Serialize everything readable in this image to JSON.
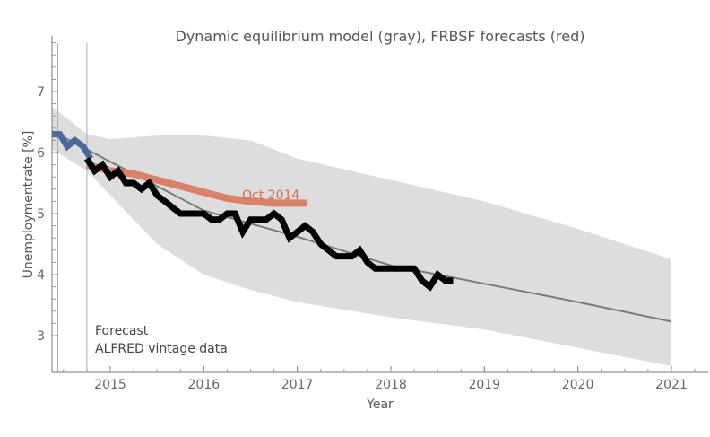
{
  "chart_data": {
    "type": "line",
    "title": "Dynamic equilibrium model (gray), FRBSF forecasts (red)",
    "xlabel": "Year",
    "ylabel": "Unemploymentrate [%]",
    "xlim": [
      2014.38,
      2021.4
    ],
    "ylim": [
      2.4,
      7.9
    ],
    "xticks": [
      "2015",
      "2016",
      "2017",
      "2018",
      "2019",
      "2020",
      "2021"
    ],
    "yticks": [
      "3",
      "4",
      "5",
      "6",
      "7"
    ],
    "grid": false,
    "annotations": {
      "forecast": "Forecast",
      "vintage": "ALFRED vintage data",
      "red_label": "Oct 2014"
    },
    "colors": {
      "band": "#dddddd",
      "model": "#7a7a7a",
      "data": "#000000",
      "history": "#4a6a9a",
      "forecast": "#d9826a",
      "text": "#555555"
    },
    "model_band": {
      "x": [
        2014.38,
        2014.75,
        2015,
        2015.5,
        2016,
        2016.5,
        2017,
        2018,
        2019,
        2020,
        2021
      ],
      "upper": [
        6.75,
        6.3,
        6.22,
        6.28,
        6.28,
        6.2,
        5.9,
        5.55,
        5.2,
        4.75,
        4.25
      ],
      "lower": [
        6.05,
        5.7,
        5.3,
        4.5,
        4.0,
        3.75,
        3.55,
        3.3,
        3.1,
        2.8,
        2.5
      ]
    },
    "model_line": {
      "x": [
        2014.38,
        2015,
        2016,
        2017,
        2018,
        2019,
        2020,
        2021
      ],
      "y": [
        6.35,
        5.85,
        5.05,
        4.62,
        4.15,
        3.85,
        3.55,
        3.23
      ]
    },
    "history": {
      "x": [
        2014.38,
        2014.46,
        2014.54,
        2014.62,
        2014.71,
        2014.79
      ],
      "y": [
        6.3,
        6.3,
        6.1,
        6.2,
        6.1,
        5.9
      ]
    },
    "data_start": 2014.75,
    "data_monthly": [
      5.9,
      5.7,
      5.8,
      5.6,
      5.7,
      5.5,
      5.5,
      5.4,
      5.5,
      5.3,
      5.2,
      5.1,
      5.0,
      5.0,
      5.0,
      5.0,
      4.9,
      4.9,
      5.0,
      5.0,
      4.7,
      4.9,
      4.9,
      4.9,
      5.0,
      4.9,
      4.6,
      4.7,
      4.8,
      4.7,
      4.5,
      4.4,
      4.3,
      4.3,
      4.3,
      4.4,
      4.2,
      4.1,
      4.1,
      4.1,
      4.1,
      4.1,
      4.1,
      3.9,
      3.8,
      4.0,
      3.9,
      3.9
    ],
    "forecast": {
      "name": "Oct 2014",
      "x": [
        2014.75,
        2015.0,
        2015.25,
        2015.5,
        2015.75,
        2016.0,
        2016.25,
        2016.5,
        2016.75,
        2017.1
      ],
      "y": [
        5.8,
        5.7,
        5.65,
        5.55,
        5.45,
        5.35,
        5.25,
        5.2,
        5.17,
        5.17
      ]
    },
    "vlines": [
      2014.44,
      2014.75
    ]
  }
}
